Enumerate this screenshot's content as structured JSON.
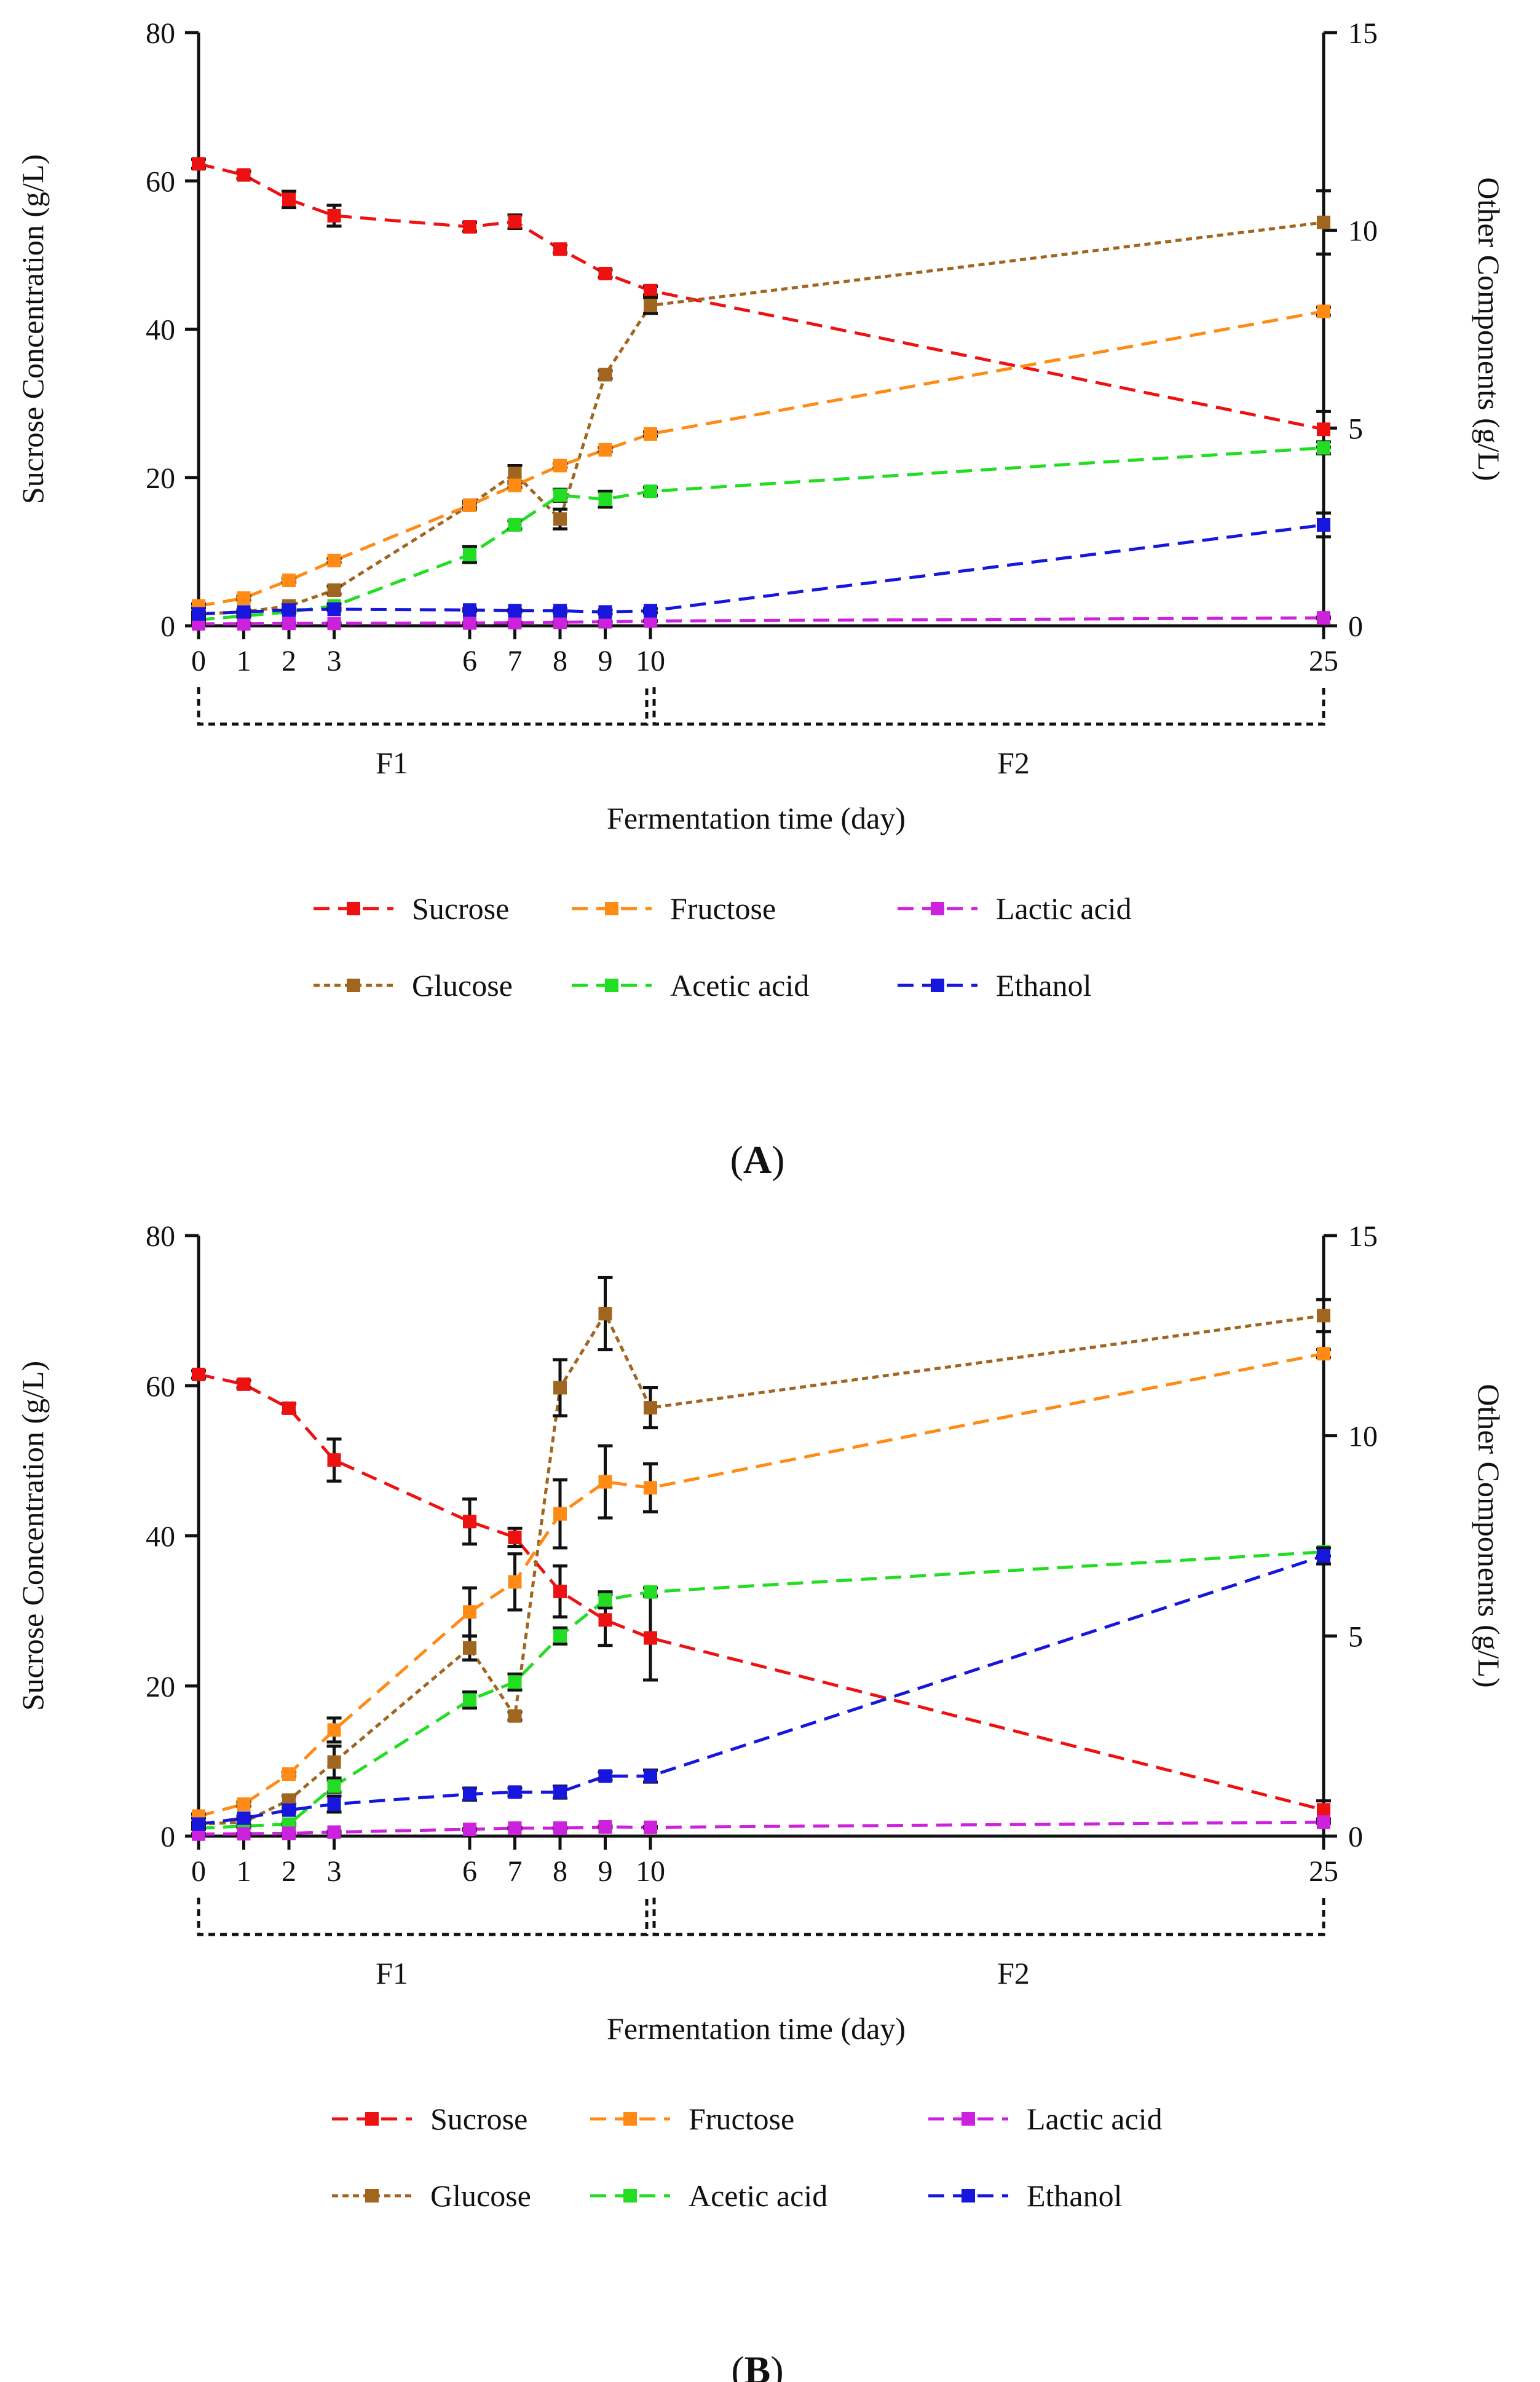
{
  "colors": {
    "Sucrose": "#ee1111",
    "Glucose": "#a0651e",
    "Fructose": "#ff8a14",
    "Acetic acid": "#22dd22",
    "Lactic acid": "#cc22dd",
    "Ethanol": "#1616dd",
    "axis": "#111111"
  },
  "chart_data": [
    {
      "type": "line",
      "panel_label": "A",
      "xlabel": "Fermentation time (day)",
      "ylabel_left": "Sucrose Concentration (g/L)",
      "ylabel_right": "Other Components (g/L)",
      "ylim_left": [
        0,
        80
      ],
      "ylim_right": [
        0,
        15
      ],
      "yticks_left": [
        0,
        20,
        40,
        60,
        80
      ],
      "yticks_right": [
        0,
        5,
        10,
        15
      ],
      "xticks": [
        0,
        1,
        2,
        3,
        6,
        7,
        8,
        9,
        10,
        25
      ],
      "sections": [
        {
          "label": "F1",
          "from": 0,
          "to": 10
        },
        {
          "label": "F2",
          "from": 10,
          "to": 25
        }
      ],
      "legend_position": "bottom",
      "x": [
        0,
        1,
        2,
        3,
        6,
        7,
        8,
        9,
        10,
        25
      ],
      "series": [
        {
          "name": "Sucrose",
          "axis": "left",
          "values": [
            62.3,
            60.8,
            57.5,
            55.3,
            53.8,
            54.5,
            50.8,
            47.5,
            45.2,
            26.5
          ],
          "errors": [
            0.6,
            0.5,
            1.1,
            1.4,
            0.6,
            0.9,
            0.5,
            0.5,
            0.6,
            2.4
          ]
        },
        {
          "name": "Glucose",
          "axis": "right",
          "values": [
            0.3,
            0.35,
            0.5,
            0.9,
            3.05,
            3.85,
            2.7,
            6.35,
            8.1,
            10.2
          ],
          "errors": [
            0.05,
            0.05,
            0.05,
            0.1,
            0.1,
            0.2,
            0.25,
            0.1,
            0.2,
            0.8
          ]
        },
        {
          "name": "Fructose",
          "axis": "right",
          "values": [
            0.5,
            0.7,
            1.15,
            1.65,
            3.05,
            3.55,
            4.05,
            4.45,
            4.85,
            7.95
          ],
          "errors": [
            0.05,
            0.05,
            0.05,
            0.05,
            0.05,
            0.05,
            0.05,
            0.05,
            0.05,
            0.1
          ]
        },
        {
          "name": "Acetic acid",
          "axis": "right",
          "values": [
            0.15,
            0.25,
            0.35,
            0.5,
            1.8,
            2.55,
            3.3,
            3.2,
            3.4,
            4.5
          ],
          "errors": [
            0.03,
            0.03,
            0.03,
            0.05,
            0.2,
            0.1,
            0.15,
            0.2,
            0.1,
            0.15
          ]
        },
        {
          "name": "Lactic acid",
          "axis": "right",
          "values": [
            0.05,
            0.05,
            0.06,
            0.06,
            0.07,
            0.08,
            0.09,
            0.1,
            0.12,
            0.2
          ],
          "errors": [
            0.01,
            0.01,
            0.01,
            0.01,
            0.01,
            0.01,
            0.01,
            0.01,
            0.01,
            0.02
          ]
        },
        {
          "name": "Ethanol",
          "axis": "right",
          "values": [
            0.3,
            0.35,
            0.4,
            0.42,
            0.4,
            0.38,
            0.38,
            0.35,
            0.38,
            2.55
          ],
          "errors": [
            0.03,
            0.03,
            0.03,
            0.03,
            0.03,
            0.03,
            0.05,
            0.05,
            0.05,
            0.3
          ]
        }
      ]
    },
    {
      "type": "line",
      "panel_label": "B",
      "xlabel": "Fermentation time (day)",
      "ylabel_left": "Sucrose Concentration (g/L)",
      "ylabel_right": "Other Components (g/L)",
      "ylim_left": [
        0,
        80
      ],
      "ylim_right": [
        0,
        15
      ],
      "yticks_left": [
        0,
        20,
        40,
        60,
        80
      ],
      "yticks_right": [
        0,
        5,
        10,
        15
      ],
      "xticks": [
        0,
        1,
        2,
        3,
        6,
        7,
        8,
        9,
        10,
        25
      ],
      "sections": [
        {
          "label": "F1",
          "from": 0,
          "to": 10
        },
        {
          "label": "F2",
          "from": 10,
          "to": 25
        }
      ],
      "legend_position": "bottom",
      "x": [
        0,
        1,
        2,
        3,
        6,
        7,
        8,
        9,
        10,
        25
      ],
      "series": [
        {
          "name": "Sucrose",
          "axis": "left",
          "values": [
            61.5,
            60.2,
            57,
            50.1,
            41.9,
            39.8,
            32.6,
            28.8,
            26.4,
            3.5
          ],
          "errors": [
            0.5,
            0.5,
            0.6,
            2.8,
            3.0,
            1.2,
            3.4,
            3.4,
            5.6,
            1.2
          ]
        },
        {
          "name": "Glucose",
          "axis": "right",
          "values": [
            0.3,
            0.35,
            0.9,
            1.85,
            4.7,
            3.0,
            11.2,
            13.05,
            10.7,
            13.0
          ],
          "errors": [
            0.05,
            0.05,
            0.1,
            0.4,
            0.3,
            0.1,
            0.7,
            0.9,
            0.5,
            0.4
          ]
        },
        {
          "name": "Fructose",
          "axis": "right",
          "values": [
            0.5,
            0.8,
            1.55,
            2.65,
            5.6,
            6.35,
            8.05,
            8.85,
            8.7,
            12.05
          ],
          "errors": [
            0.05,
            0.05,
            0.05,
            0.3,
            0.6,
            0.7,
            0.85,
            0.9,
            0.6,
            0.1
          ]
        },
        {
          "name": "Acetic acid",
          "axis": "right",
          "values": [
            0.2,
            0.25,
            0.3,
            1.25,
            3.4,
            3.85,
            5.0,
            5.9,
            6.1,
            7.1
          ],
          "errors": [
            0.03,
            0.03,
            0.03,
            0.15,
            0.2,
            0.2,
            0.2,
            0.2,
            0.1,
            0.1
          ]
        },
        {
          "name": "Lactic acid",
          "axis": "right",
          "values": [
            0.05,
            0.06,
            0.07,
            0.1,
            0.17,
            0.2,
            0.2,
            0.23,
            0.22,
            0.35
          ],
          "errors": [
            0.01,
            0.01,
            0.01,
            0.02,
            0.02,
            0.02,
            0.02,
            0.02,
            0.02,
            0.03
          ]
        },
        {
          "name": "Ethanol",
          "axis": "right",
          "values": [
            0.3,
            0.45,
            0.65,
            0.8,
            1.05,
            1.1,
            1.1,
            1.5,
            1.5,
            7.0
          ],
          "errors": [
            0.03,
            0.05,
            0.05,
            0.2,
            0.15,
            0.1,
            0.15,
            0.1,
            0.15,
            0.2
          ]
        }
      ]
    }
  ],
  "legend": {
    "row1": [
      "Sucrose",
      "Fructose",
      "Lactic acid"
    ],
    "row2": [
      "Glucose",
      "Acetic acid",
      "Ethanol"
    ]
  }
}
